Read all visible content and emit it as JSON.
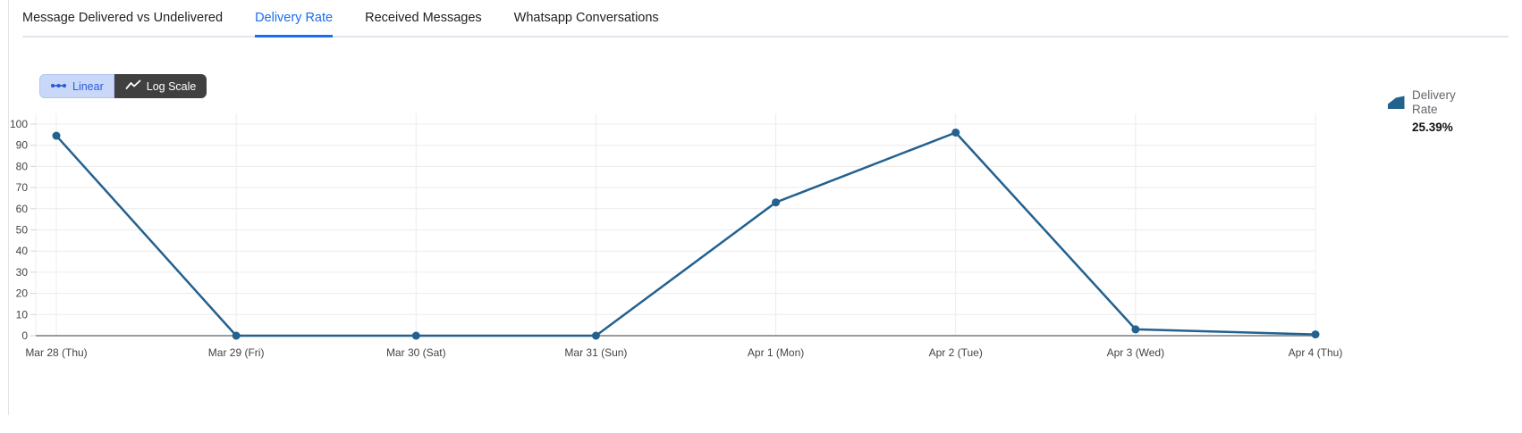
{
  "tabs": {
    "items": [
      {
        "label": "Message Delivered vs Undelivered",
        "active": false
      },
      {
        "label": "Delivery Rate",
        "active": true
      },
      {
        "label": "Received Messages",
        "active": false
      },
      {
        "label": "Whatsapp Conversations",
        "active": false
      }
    ],
    "active_color": "#1a6df0"
  },
  "scale_toggle": {
    "linear_label": "Linear",
    "log_label": "Log Scale",
    "selected": "Linear",
    "linear_bg": "#c9d8f8",
    "linear_text_color": "#2a5bd7",
    "log_bg": "#404040",
    "log_text_color": "#ffffff"
  },
  "legend": {
    "icon": "area-chart-icon",
    "icon_color": "#23618f",
    "label": "Delivery Rate",
    "value": "25.39%"
  },
  "chart_data": {
    "type": "line",
    "title": "",
    "xlabel": "",
    "ylabel": "",
    "series_name": "Delivery Rate",
    "categories": [
      "Mar 28 (Thu)",
      "Mar 29 (Fri)",
      "Mar 30 (Sat)",
      "Mar 31 (Sun)",
      "Apr 1 (Mon)",
      "Apr 2 (Tue)",
      "Apr 3 (Wed)",
      "Apr 4 (Thu)"
    ],
    "values": [
      94.5,
      0,
      0,
      0,
      63,
      96,
      3,
      0.6
    ],
    "ylim": [
      0,
      100
    ],
    "yticks": [
      0,
      10,
      20,
      30,
      40,
      50,
      60,
      70,
      80,
      90,
      100
    ],
    "grid": true,
    "legend_position": "right",
    "line_color": "#23618f",
    "marker": "circle",
    "gridline_color": "#ececec",
    "zeroline_color": "#9b9b9b"
  }
}
